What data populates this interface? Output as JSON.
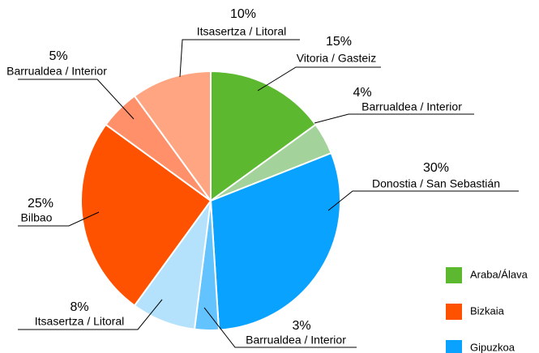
{
  "chart_data": {
    "type": "pie",
    "categories": [
      "Vitoria / Gasteiz",
      "Barrualdea / Interior",
      "Donostia / San Sebastián",
      "Barrualdea / Interior",
      "Itsasertza / Litoral",
      "Bilbao",
      "Barrualdea / Interior",
      "Itsasertza / Litoral"
    ],
    "values": [
      15,
      4,
      30,
      3,
      8,
      25,
      5,
      10
    ],
    "value_labels": [
      "15%",
      "4%",
      "30%",
      "3%",
      "8%",
      "25%",
      "5%",
      "10%"
    ],
    "colors": [
      "#5cb82e",
      "#a3d39a",
      "#0aa2ff",
      "#62c3ff",
      "#b4e2fc",
      "#ff5200",
      "#ff906a",
      "#ffa582"
    ],
    "legend": {
      "position": "right",
      "items": [
        {
          "name": "Araba/Álava",
          "color": "#5cb82e"
        },
        {
          "name": "Bizkaia",
          "color": "#ff5200"
        },
        {
          "name": "Gipuzkoa",
          "color": "#0aa2ff"
        }
      ]
    }
  }
}
